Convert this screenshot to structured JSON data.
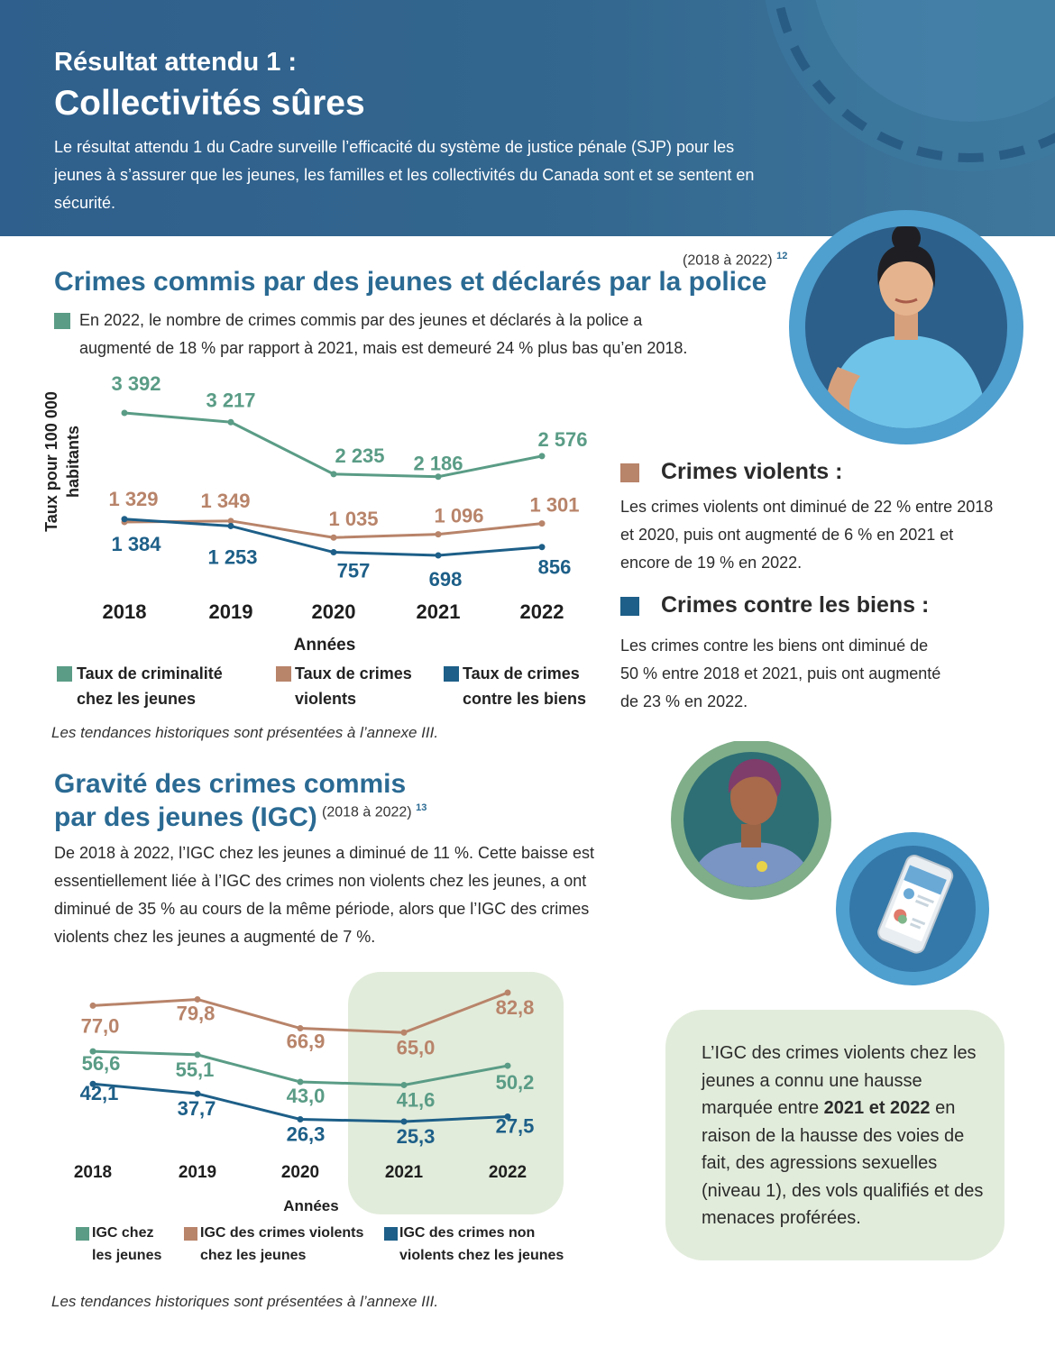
{
  "header": {
    "kicker": "Résultat attendu 1 :",
    "title": "Collectivités sûres",
    "intro": "Le résultat attendu 1 du Cadre surveille l’efficacité du système de justice pénale (SJP) pour les jeunes à s’assurer que les jeunes, les familles et les collectivités du Canada sont et se sentent en sécurité."
  },
  "section1": {
    "title": "Crimes commis par des jeunes et déclarés par la police",
    "range": "(2018 à 2022)",
    "footnote": "12",
    "bullet_line1": "En 2022, le nombre de crimes commis par des jeunes et déclarés à la police a",
    "bullet_line2": "augmenté de 18 % par rapport à 2021, mais est demeuré 24 % plus bas qu’en 2018.",
    "y_label_line1": "Taux pour 100 000",
    "y_label_line2": "habitants",
    "note": "Les tendances historiques sont présentées à l’annexe III."
  },
  "side": {
    "violent_title": "Crimes violents :",
    "violent_text": "Les crimes violents ont diminué de 22 % entre 2018 et 2020, puis ont augmenté de 6 % en 2021 et encore de 19 % en 2022.",
    "property_title": "Crimes contre les biens :",
    "property_text": "Les crimes contre les biens ont diminué de 50 % entre 2018 et 2021, puis ont augmenté de 23 % en 2022."
  },
  "section2": {
    "title_line1": "Gravité des crimes commis",
    "title_line2": "par des jeunes (IGC)",
    "range": "(2018 à 2022)",
    "footnote": "13",
    "text": "De 2018 à 2022, l’IGC chez les jeunes a diminué de 11 %. Cette baisse est essentiellement liée à  l’IGC des crimes non violents chez les jeunes, a ont diminué de 35 % au cours de la même période, alors que l’IGC des crimes violents chez les jeunes a augmenté de 7 %.",
    "note": "Les tendances historiques sont présentées à l’annexe III."
  },
  "callout": {
    "text_before": "L’IGC des crimes violents chez les jeunes a connu une hausse marquée entre ",
    "text_bold": "2021 et 2022",
    "text_after": " en raison de la hausse des voies de fait, des agressions sexuelles (niveau 1), des vols qualifiés et des menaces proférées."
  },
  "colors": {
    "teal": "#5a9c86",
    "brown": "#b8846a",
    "blue": "#1d5f88",
    "title_blue": "#2a6a93",
    "header_blue": "#33678f",
    "highlight_green": "#e2ecdb"
  },
  "illustrations": [
    "woman-portrait-icon",
    "older-woman-portrait-icon",
    "smartphone-icon"
  ],
  "chart_data": [
    {
      "type": "line",
      "xlabel": "Années",
      "ylabel": "Taux pour 100 000 habitants",
      "x": [
        "2018",
        "2019",
        "2020",
        "2021",
        "2022"
      ],
      "series": [
        {
          "name": "Taux de criminalité chez les jeunes",
          "color": "#5a9c86",
          "values": [
            3392,
            3217,
            2235,
            2186,
            2576
          ],
          "labels": [
            "3 392",
            "3 217",
            "2 235",
            "2 186",
            "2 576"
          ]
        },
        {
          "name": "Taux de crimes violents",
          "color": "#b8846a",
          "values": [
            1329,
            1349,
            1035,
            1096,
            1301
          ],
          "labels": [
            "1 329",
            "1 349",
            "1 035",
            "1 096",
            "1 301"
          ]
        },
        {
          "name": "Taux de crimes contre les biens",
          "color": "#1d5f88",
          "values": [
            1384,
            1253,
            757,
            698,
            856
          ],
          "labels": [
            "1 384",
            "1 253",
            "757",
            "698",
            "856"
          ]
        }
      ],
      "legend": [
        {
          "line1": "Taux de criminalité",
          "line2": "chez les jeunes"
        },
        {
          "line1": "Taux de crimes",
          "line2": "violents"
        },
        {
          "line1": "Taux de crimes",
          "line2": "contre les biens"
        }
      ]
    },
    {
      "type": "line",
      "xlabel": "Années",
      "x": [
        "2018",
        "2019",
        "2020",
        "2021",
        "2022"
      ],
      "highlight": [
        "2021",
        "2022"
      ],
      "series": [
        {
          "name": "IGC des crimes violents chez les jeunes",
          "color": "#b8846a",
          "values": [
            77.0,
            79.8,
            66.9,
            65.0,
            82.8
          ],
          "labels": [
            "77,0",
            "79,8",
            "66,9",
            "65,0",
            "82,8"
          ]
        },
        {
          "name": "IGC chez les jeunes",
          "color": "#5a9c86",
          "values": [
            56.6,
            55.1,
            43.0,
            41.6,
            50.2
          ],
          "labels": [
            "56,6",
            "55,1",
            "43,0",
            "41,6",
            "50,2"
          ]
        },
        {
          "name": "IGC des crimes non violents chez les jeunes",
          "color": "#1d5f88",
          "values": [
            42.1,
            37.7,
            26.3,
            25.3,
            27.5
          ],
          "labels": [
            "42,1",
            "37,7",
            "26,3",
            "25,3",
            "27,5"
          ]
        }
      ],
      "legend": [
        {
          "line1": "IGC chez",
          "line2": "les jeunes"
        },
        {
          "line1": "IGC des crimes violents",
          "line2": "chez les jeunes"
        },
        {
          "line1": "IGC des crimes non",
          "line2": "violents chez les jeunes"
        }
      ]
    }
  ]
}
